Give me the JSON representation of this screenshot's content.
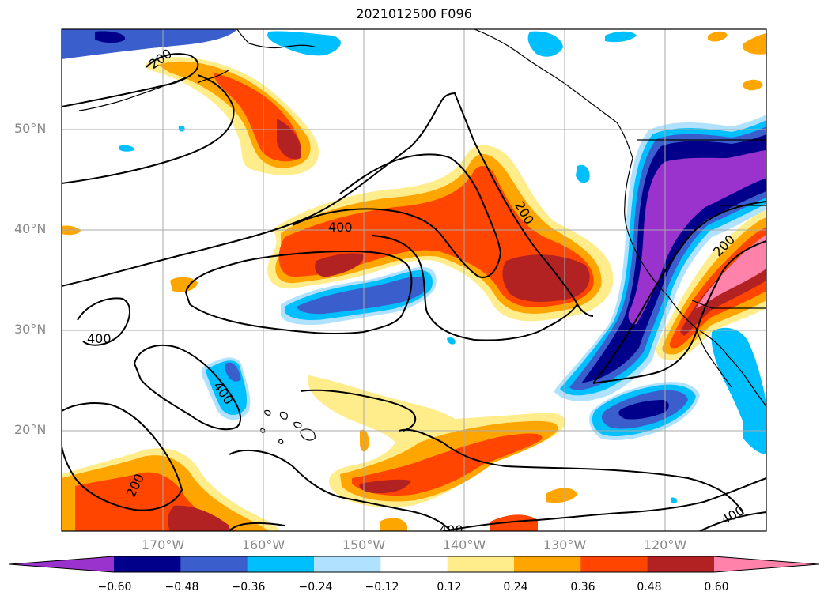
{
  "title": "2021012500 F096",
  "lat_labels": [
    "50°N",
    "40°N",
    "30°N",
    "20°N"
  ],
  "lon_labels": [
    "170°W",
    "160°W",
    "150°W",
    "140°W",
    "130°W",
    "120°W"
  ],
  "contour_labels": [
    "200",
    "400",
    "400",
    "200",
    "400",
    "200",
    "400",
    "200",
    "400",
    "400"
  ],
  "colorbar": {
    "labels": [
      "−0.60",
      "−0.48",
      "−0.36",
      "−0.24",
      "−0.12",
      "0.12",
      "0.24",
      "0.36",
      "0.48",
      "0.60"
    ],
    "colors": [
      "#9a32cd",
      "#00008b",
      "#3a5fcd",
      "#00bfff",
      "#b0e2ff",
      "#ffffff",
      "#ffec8b",
      "#ffa500",
      "#ff4500",
      "#b22222",
      "#ff82ab"
    ]
  },
  "colors": {
    "coast": "#000000",
    "grid": "#999999",
    "label_gray": "#888888"
  }
}
